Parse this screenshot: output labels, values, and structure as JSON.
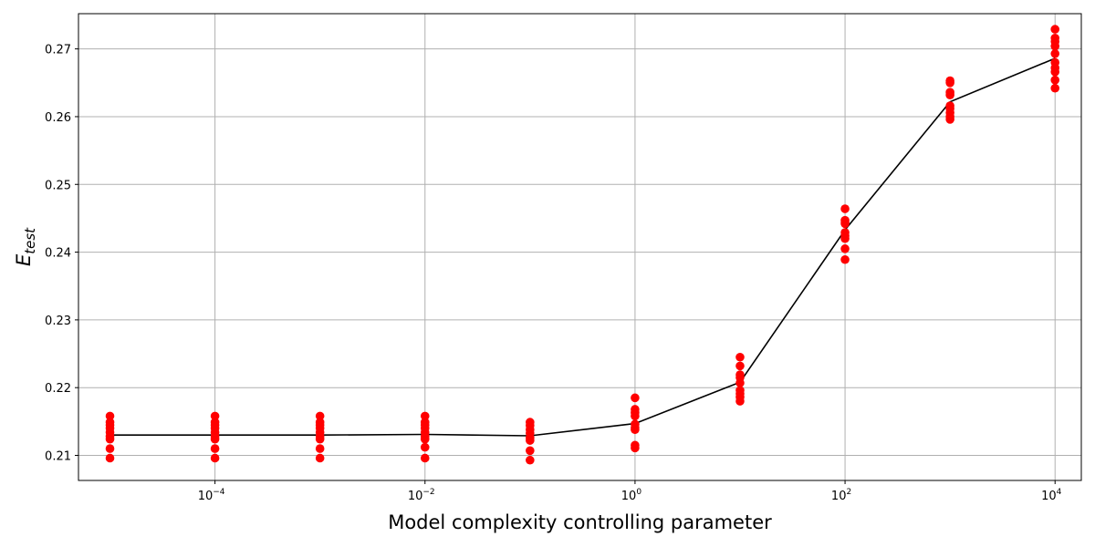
{
  "chart_data": {
    "type": "scatter",
    "title": "",
    "xlabel": "Model complexity controlling parameter",
    "ylabel": {
      "base": "E",
      "subscript": "test"
    },
    "x_scale": "log",
    "xlim_exponent": [
      -5.3,
      4.25
    ],
    "ylim": [
      0.2063,
      0.2752
    ],
    "grid": true,
    "x_ticks": [
      {
        "exponent": -4,
        "base": "10",
        "exp_label": "−4"
      },
      {
        "exponent": -2,
        "base": "10",
        "exp_label": "−2"
      },
      {
        "exponent": 0,
        "base": "10",
        "exp_label": "0"
      },
      {
        "exponent": 2,
        "base": "10",
        "exp_label": "2"
      },
      {
        "exponent": 4,
        "base": "10",
        "exp_label": "4"
      }
    ],
    "y_ticks": [
      "0.21",
      "0.22",
      "0.23",
      "0.24",
      "0.25",
      "0.26",
      "0.27"
    ],
    "colors": {
      "points": "#ff0000",
      "line": "#000000",
      "grid": "#b0b0b0"
    },
    "series": [
      {
        "type": "scatter",
        "points": [
          {
            "x": 1e-05,
            "y": [
              0.2158,
              0.2149,
              0.2145,
              0.214,
              0.2134,
              0.2128,
              0.2124,
              0.211,
              0.2096
            ]
          },
          {
            "x": 0.0001,
            "y": [
              0.2158,
              0.2149,
              0.2145,
              0.214,
              0.2134,
              0.2128,
              0.2124,
              0.211,
              0.2096
            ]
          },
          {
            "x": 0.001,
            "y": [
              0.2158,
              0.2149,
              0.2145,
              0.214,
              0.2134,
              0.2128,
              0.2124,
              0.211,
              0.2096
            ]
          },
          {
            "x": 0.01,
            "y": [
              0.2158,
              0.2149,
              0.2145,
              0.214,
              0.2134,
              0.2128,
              0.2124,
              0.2112,
              0.2096
            ]
          },
          {
            "x": 0.1,
            "y": [
              0.2149,
              0.2144,
              0.2138,
              0.2133,
              0.2126,
              0.2122,
              0.2107,
              0.2093
            ]
          },
          {
            "x": 1,
            "y": [
              0.2185,
              0.2168,
              0.2163,
              0.2158,
              0.2146,
              0.2141,
              0.2138,
              0.2115,
              0.2111
            ]
          },
          {
            "x": 10,
            "y": [
              0.2245,
              0.2232,
              0.2219,
              0.2215,
              0.2207,
              0.2196,
              0.2191,
              0.2186,
              0.218
            ]
          },
          {
            "x": 100,
            "y": [
              0.2464,
              0.2447,
              0.2444,
              0.2442,
              0.2429,
              0.2424,
              0.242,
              0.2405,
              0.2389
            ]
          },
          {
            "x": 1000,
            "y": [
              0.2653,
              0.265,
              0.2636,
              0.2632,
              0.2616,
              0.2612,
              0.2606,
              0.26,
              0.2596
            ]
          },
          {
            "x": 10000,
            "y": [
              0.2729,
              0.2716,
              0.2711,
              0.2704,
              0.2693,
              0.268,
              0.2672,
              0.2666,
              0.2654,
              0.2642
            ]
          }
        ]
      },
      {
        "type": "line",
        "x": [
          1e-05,
          0.0001,
          0.001,
          0.01,
          0.1,
          1,
          10,
          100,
          1000,
          10000
        ],
        "y": [
          0.213,
          0.213,
          0.213,
          0.2131,
          0.2129,
          0.2147,
          0.2208,
          0.2433,
          0.2622,
          0.2686
        ]
      }
    ]
  }
}
